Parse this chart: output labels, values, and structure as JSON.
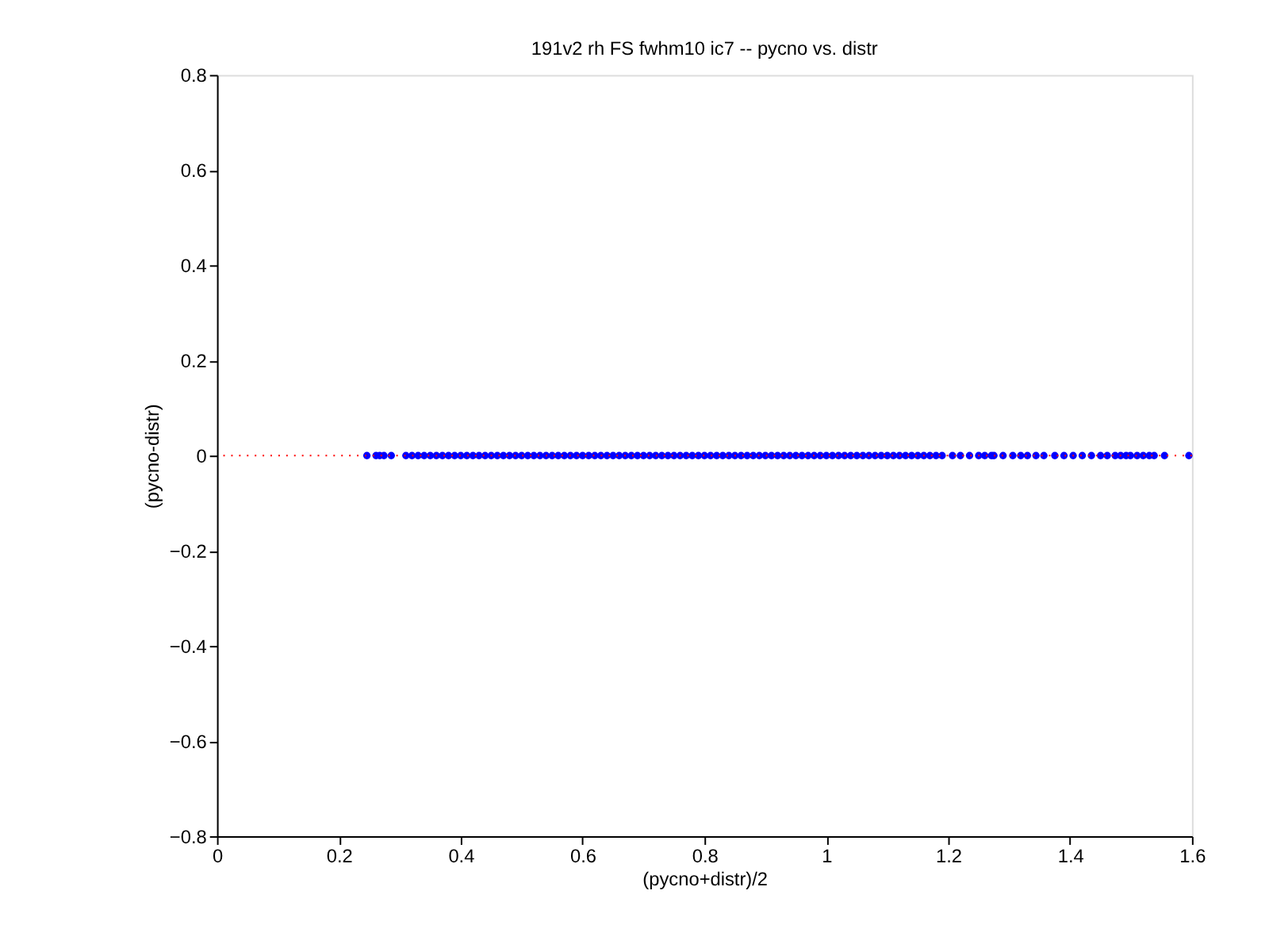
{
  "chart_data": {
    "type": "scatter",
    "title": "191v2 rh FS fwhm10 ic7 -- pycno vs. distr",
    "xlabel": "(pycno+distr)/2",
    "ylabel": "(pycno-distr)",
    "xlim": [
      0,
      1.6
    ],
    "xticks": [
      0,
      0.2,
      0.4,
      0.6,
      0.8,
      1,
      1.2,
      1.4,
      1.6
    ],
    "ylim": [
      -0.8,
      0.8
    ],
    "yticks": [
      -0.8,
      -0.6,
      -0.4,
      -0.2,
      0,
      0.2,
      0.4,
      0.6,
      0.8
    ],
    "grid": false,
    "marker": "circle",
    "ref_lines": [
      {
        "axis": "y",
        "value": 0,
        "color": "#ff0000",
        "line_style": "dotted"
      }
    ],
    "series": [
      {
        "color": "#0000ff",
        "x": [
          0.246,
          0.261,
          0.267,
          0.274,
          0.286,
          0.31,
          0.32,
          0.33,
          0.34,
          0.35,
          0.36,
          0.37,
          0.38,
          0.39,
          0.4,
          0.41,
          0.42,
          0.43,
          0.44,
          0.45,
          0.46,
          0.47,
          0.48,
          0.49,
          0.5,
          0.51,
          0.52,
          0.53,
          0.54,
          0.55,
          0.56,
          0.57,
          0.58,
          0.59,
          0.6,
          0.61,
          0.62,
          0.63,
          0.64,
          0.65,
          0.66,
          0.67,
          0.68,
          0.69,
          0.7,
          0.71,
          0.72,
          0.73,
          0.74,
          0.75,
          0.76,
          0.77,
          0.78,
          0.79,
          0.8,
          0.81,
          0.82,
          0.83,
          0.84,
          0.85,
          0.86,
          0.87,
          0.88,
          0.89,
          0.9,
          0.91,
          0.92,
          0.93,
          0.94,
          0.95,
          0.96,
          0.97,
          0.98,
          0.99,
          1.0,
          1.01,
          1.02,
          1.03,
          1.04,
          1.05,
          1.06,
          1.07,
          1.08,
          1.09,
          1.1,
          1.11,
          1.12,
          1.13,
          1.14,
          1.15,
          1.16,
          1.17,
          1.18,
          1.19,
          1.207,
          1.22,
          1.235,
          1.25,
          1.26,
          1.271,
          1.275,
          1.29,
          1.306,
          1.319,
          1.33,
          1.344,
          1.357,
          1.375,
          1.39,
          1.405,
          1.42,
          1.435,
          1.45,
          1.461,
          1.474,
          1.483,
          1.492,
          1.499,
          1.51,
          1.52,
          1.53,
          1.538,
          1.555,
          1.595
        ],
        "values": [
          0,
          0,
          0,
          0,
          0,
          0,
          0,
          0,
          0,
          0,
          0,
          0,
          0,
          0,
          0,
          0,
          0,
          0,
          0,
          0,
          0,
          0,
          0,
          0,
          0,
          0,
          0,
          0,
          0,
          0,
          0,
          0,
          0,
          0,
          0,
          0,
          0,
          0,
          0,
          0,
          0,
          0,
          0,
          0,
          0,
          0,
          0,
          0,
          0,
          0,
          0,
          0,
          0,
          0,
          0,
          0,
          0,
          0,
          0,
          0,
          0,
          0,
          0,
          0,
          0,
          0,
          0,
          0,
          0,
          0,
          0,
          0,
          0,
          0,
          0,
          0,
          0,
          0,
          0,
          0,
          0,
          0,
          0,
          0,
          0,
          0,
          0,
          0,
          0,
          0,
          0,
          0,
          0,
          0,
          0,
          0,
          0,
          0,
          0,
          0,
          0,
          0,
          0,
          0,
          0,
          0,
          0,
          0,
          0,
          0,
          0,
          0,
          0,
          0,
          0,
          0,
          0,
          0,
          0,
          0,
          0,
          0,
          0,
          0
        ]
      }
    ]
  }
}
